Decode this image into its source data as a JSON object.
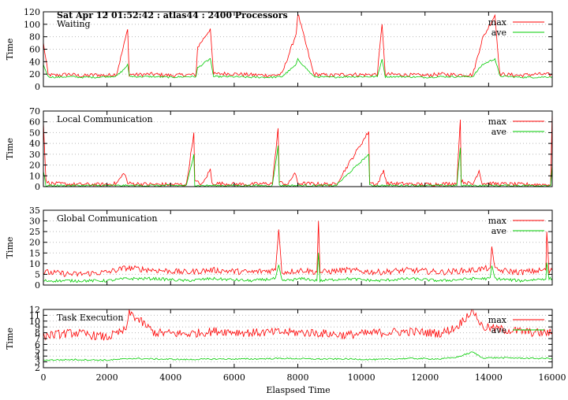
{
  "figure": {
    "header": "Sat Apr 12 01:52:42 : atlas44 : 2400 Processors",
    "xlabel": "Elaspsed Time",
    "xlim": [
      0,
      16000
    ],
    "xticks": [
      0,
      2000,
      4000,
      6000,
      8000,
      10000,
      12000,
      14000,
      16000
    ],
    "grid": true,
    "grid_style": "dotted horizontal",
    "legend_position": "top-right"
  },
  "colors": {
    "max": "#ff0000",
    "ave": "#00cc00",
    "axis": "#000000",
    "grid": "#b8b8b8"
  },
  "chart_data": [
    {
      "type": "line",
      "title": "Waiting",
      "ylabel": "Time",
      "ylim": [
        0,
        120
      ],
      "yticks": [
        0,
        20,
        40,
        60,
        80,
        100,
        120
      ],
      "legend": [
        "max",
        "ave"
      ],
      "x": [
        0,
        150,
        400,
        800,
        1200,
        1600,
        2000,
        2300,
        2500,
        2650,
        2700,
        2900,
        3400,
        4000,
        4500,
        4800,
        4850,
        5250,
        5350,
        5800,
        6500,
        7200,
        7500,
        7950,
        8000,
        8500,
        9000,
        9600,
        10100,
        10500,
        10650,
        10750,
        11300,
        12000,
        12500,
        13000,
        13500,
        13800,
        14200,
        14350,
        15000,
        15500,
        16000
      ],
      "series": [
        {
          "name": "max",
          "values": [
            70,
            19,
            18,
            20,
            17,
            19,
            18,
            20,
            60,
            92,
            20,
            19,
            20,
            18,
            19,
            19,
            63,
            93,
            20,
            21,
            19,
            18,
            20,
            85,
            118,
            20,
            18,
            20,
            19,
            20,
            100,
            20,
            19,
            18,
            20,
            19,
            19,
            76,
            115,
            20,
            18,
            20,
            19
          ]
        },
        {
          "name": "ave",
          "values": [
            35,
            16,
            15,
            16,
            15,
            15,
            16,
            17,
            26,
            35,
            17,
            16,
            16,
            15,
            16,
            16,
            30,
            45,
            16,
            16,
            15,
            15,
            16,
            35,
            44,
            16,
            15,
            16,
            16,
            16,
            44,
            16,
            16,
            15,
            16,
            16,
            16,
            35,
            45,
            17,
            15,
            15,
            16
          ]
        }
      ]
    },
    {
      "type": "line",
      "title": "Local Communication",
      "ylabel": "Time",
      "ylim": [
        0,
        70
      ],
      "yticks": [
        0,
        10,
        20,
        30,
        40,
        50,
        60,
        70
      ],
      "legend": [
        "max",
        "ave"
      ],
      "x": [
        0,
        80,
        200,
        1000,
        2000,
        2300,
        2550,
        2650,
        3500,
        4500,
        4730,
        4760,
        5000,
        5250,
        5300,
        6500,
        7200,
        7380,
        7420,
        7700,
        7900,
        8000,
        9200,
        10230,
        10260,
        10500,
        10700,
        10800,
        12000,
        13000,
        13110,
        13140,
        13500,
        13700,
        13800,
        15000,
        15950,
        16000
      ],
      "series": [
        {
          "name": "max",
          "values": [
            60,
            5,
            3,
            2,
            2,
            3,
            13,
            3,
            2,
            2,
            50,
            5,
            2,
            16,
            3,
            2,
            3,
            54,
            4,
            2,
            13,
            3,
            2,
            51,
            4,
            2,
            15,
            3,
            2,
            3,
            62,
            5,
            2,
            15,
            3,
            2,
            2,
            70
          ]
        },
        {
          "name": "ave",
          "values": [
            14,
            1,
            1,
            1,
            1,
            1,
            1,
            1,
            1,
            1,
            30,
            1,
            1,
            1,
            1,
            1,
            1,
            38,
            1,
            1,
            1,
            1,
            1,
            30,
            1,
            1,
            1,
            1,
            1,
            1,
            36,
            1,
            1,
            1,
            1,
            1,
            1,
            20
          ]
        }
      ]
    },
    {
      "type": "line",
      "title": "Global Communication",
      "ylabel": "Time",
      "ylim": [
        0,
        35
      ],
      "yticks": [
        0,
        5,
        10,
        15,
        20,
        25,
        30,
        35
      ],
      "legend": [
        "max",
        "ave"
      ],
      "x": [
        0,
        1000,
        2000,
        2600,
        3500,
        4500,
        5300,
        6500,
        7300,
        7400,
        7500,
        8200,
        8600,
        8650,
        8700,
        9500,
        10500,
        11500,
        12500,
        13500,
        14050,
        14100,
        14200,
        15000,
        15800,
        15830,
        15900,
        16000
      ],
      "series": [
        {
          "name": "max",
          "values": [
            6,
            5,
            6,
            8,
            7,
            6,
            7,
            6,
            7,
            26,
            6,
            7,
            6,
            30,
            6,
            7,
            6,
            7,
            6,
            7,
            8,
            18,
            7,
            6,
            7,
            25,
            6,
            7
          ]
        },
        {
          "name": "ave",
          "values": [
            2,
            2,
            2,
            3,
            3,
            2,
            3,
            2,
            3,
            9,
            2,
            3,
            2,
            15,
            2,
            3,
            2,
            3,
            2,
            3,
            3,
            9,
            3,
            2,
            3,
            10,
            3,
            3
          ]
        }
      ]
    },
    {
      "type": "line",
      "title": "Task Execution",
      "ylabel": "Time",
      "ylim": [
        2,
        12
      ],
      "yticks": [
        2,
        3,
        4,
        5,
        6,
        7,
        8,
        9,
        10,
        11,
        12
      ],
      "legend": [
        "max",
        "ave"
      ],
      "x": [
        0,
        1000,
        2000,
        2600,
        2700,
        3500,
        4500,
        5500,
        6500,
        7500,
        8500,
        9500,
        10500,
        11500,
        12500,
        13000,
        13500,
        13800,
        14500,
        15500,
        16000
      ],
      "series": [
        {
          "name": "max",
          "values": [
            7.5,
            8,
            7.2,
            8.5,
            11.5,
            8,
            7.8,
            8.3,
            8,
            8.1,
            8,
            7.6,
            8,
            8.2,
            7.9,
            9,
            12,
            9,
            8.5,
            8,
            8
          ]
        },
        {
          "name": "ave",
          "values": [
            3.3,
            3.4,
            3.3,
            3.5,
            3.6,
            3.5,
            3.4,
            3.5,
            3.5,
            3.6,
            3.5,
            3.5,
            3.4,
            3.6,
            3.5,
            3.8,
            4.7,
            3.7,
            3.7,
            3.6,
            3.6
          ]
        }
      ]
    }
  ]
}
